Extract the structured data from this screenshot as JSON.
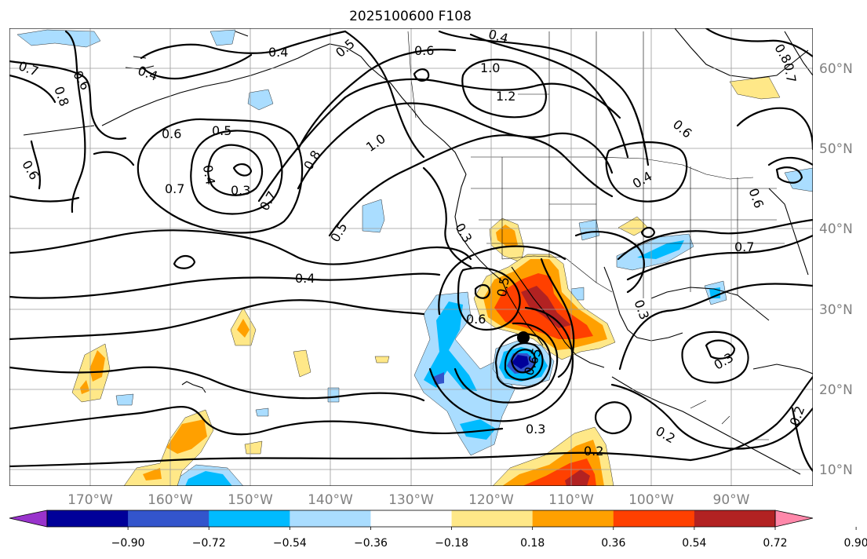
{
  "title": "2025100600 F108",
  "map": {
    "lon_labels": [
      "170°W",
      "160°W",
      "150°W",
      "140°W",
      "130°W",
      "120°W",
      "110°W",
      "100°W",
      "90°W"
    ],
    "lat_labels": [
      "60°N",
      "50°N",
      "40°N",
      "30°N",
      "20°N",
      "10°N"
    ],
    "contour_labels": [
      "0.4",
      "0.5",
      "0.6",
      "0.4",
      "1.0",
      "1.2",
      "0.8",
      "0.7",
      "0.7",
      "0.8",
      "0.6",
      "0.4",
      "0.6",
      "0.6",
      "0.5",
      "0.4",
      "0.3",
      "0.7",
      "0.7",
      "0.8",
      "1.0",
      "0.6",
      "0.5",
      "0.4",
      "0.3",
      "0.6",
      "0.5",
      "0.4",
      "0.7",
      "0.3",
      "0.6",
      "0.65",
      "0.3",
      "0.2",
      "0.2",
      "0.3",
      "0.2"
    ],
    "colors": {
      "purple": "#9933cc",
      "navy": "#000099",
      "royal": "#3355cc",
      "sky": "#00bbff",
      "pale_blue": "#aaddff",
      "white": "#ffffff",
      "pale_yellow": "#ffe888",
      "orange": "#ffa000",
      "red_orange": "#ff4000",
      "dark_red": "#b22222",
      "pink": "#ff88aa"
    }
  },
  "colorbar": {
    "colors": [
      "#000099",
      "#3355cc",
      "#00bbff",
      "#aaddff",
      "#ffffff",
      "#ffe888",
      "#ffa000",
      "#ff4000",
      "#b22222"
    ],
    "under_color": "#9933cc",
    "over_color": "#ff88aa",
    "ticks": [
      "−0.90",
      "−0.72",
      "−0.54",
      "−0.36",
      "−0.18",
      "0.18",
      "0.36",
      "0.54",
      "0.72",
      "0.90"
    ]
  }
}
